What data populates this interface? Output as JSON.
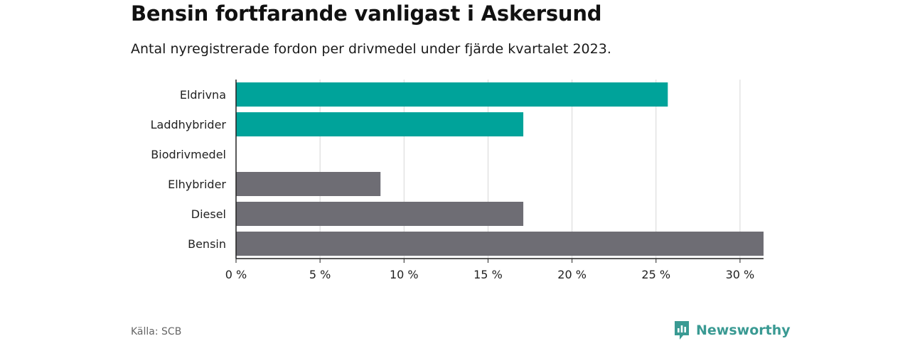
{
  "title": "Bensin fortfarande vanligast i Askersund",
  "subtitle": "Antal nyregistrerade fordon per drivmedel under fjärde kvartalet 2023.",
  "source": "Källa: SCB",
  "brand": "Newsworthy",
  "colors": {
    "highlight": "#00a39a",
    "default": "#6e6d74",
    "grid": "#d6d6d6",
    "axis": "#222222"
  },
  "chart_data": {
    "type": "bar",
    "orientation": "horizontal",
    "categories": [
      "Eldrivna",
      "Laddhybrider",
      "Biodrivmedel",
      "Elhybrider",
      "Diesel",
      "Bensin"
    ],
    "values": [
      25.7,
      17.1,
      0,
      8.6,
      17.1,
      31.4
    ],
    "bar_colors": [
      "highlight",
      "highlight",
      "highlight",
      "default",
      "default",
      "default"
    ],
    "xlim": [
      0,
      31.4
    ],
    "ticks": [
      0,
      5,
      10,
      15,
      20,
      25,
      30
    ],
    "tick_labels": [
      "0 %",
      "5 %",
      "10 %",
      "15 %",
      "20 %",
      "25 %",
      "30 %"
    ],
    "grid": true
  }
}
